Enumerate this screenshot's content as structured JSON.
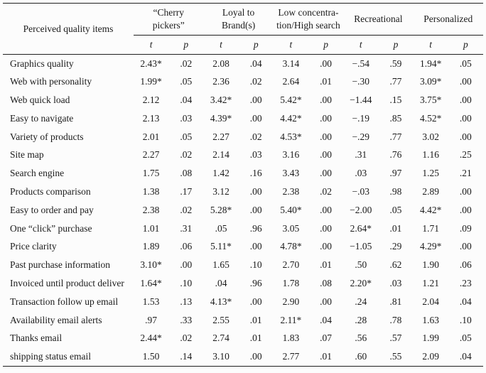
{
  "colors": {
    "ink": "#1b1b1b",
    "background": "#fcfcfc",
    "rule": "#1f1f1f"
  },
  "table": {
    "row_header": "Perceived quality items",
    "groups": [
      {
        "label": "“Cherry\npickers”"
      },
      {
        "label": "Loyal to\nBrand(s)"
      },
      {
        "label": "Low concentra-\ntion/High search"
      },
      {
        "label": "Recreational"
      },
      {
        "label": "Personalized"
      }
    ],
    "subheaders": [
      "t",
      "p"
    ],
    "rows": [
      {
        "item": "Graphics quality",
        "values": [
          "2.43*",
          ".02",
          "2.08",
          ".04",
          "3.14",
          ".00",
          "−.54",
          ".59",
          "1.94*",
          ".05"
        ]
      },
      {
        "item": "Web with personality",
        "values": [
          "1.99*",
          ".05",
          "2.36",
          ".02",
          "2.64",
          ".01",
          "−.30",
          ".77",
          "3.09*",
          ".00"
        ]
      },
      {
        "item": "Web quick load",
        "values": [
          "2.12",
          ".04",
          "3.42*",
          ".00",
          "5.42*",
          ".00",
          "−1.44",
          ".15",
          "3.75*",
          ".00"
        ]
      },
      {
        "item": "Easy to navigate",
        "values": [
          "2.13",
          ".03",
          "4.39*",
          ".00",
          "4.42*",
          ".00",
          "−.19",
          ".85",
          "4.52*",
          ".00"
        ]
      },
      {
        "item": "Variety of products",
        "values": [
          "2.01",
          ".05",
          "2.27",
          ".02",
          "4.53*",
          ".00",
          "−.29",
          ".77",
          "3.02",
          ".00"
        ]
      },
      {
        "item": "Site map",
        "values": [
          "2.27",
          ".02",
          "2.14",
          ".03",
          "3.16",
          ".00",
          ".31",
          ".76",
          "1.16",
          ".25"
        ]
      },
      {
        "item": "Search engine",
        "values": [
          "1.75",
          ".08",
          "1.42",
          ".16",
          "3.43",
          ".00",
          ".03",
          ".97",
          "1.25",
          ".21"
        ]
      },
      {
        "item": "Products comparison",
        "values": [
          "1.38",
          ".17",
          "3.12",
          ".00",
          "2.38",
          ".02",
          "−.03",
          ".98",
          "2.89",
          ".00"
        ]
      },
      {
        "item": "Easy to order and pay",
        "values": [
          "2.38",
          ".02",
          "5.28*",
          ".00",
          "5.40*",
          ".00",
          "−2.00",
          ".05",
          "4.42*",
          ".00"
        ]
      },
      {
        "item": "One “click” purchase",
        "values": [
          "1.01",
          ".31",
          ".05",
          ".96",
          "3.05",
          ".00",
          "2.64*",
          ".01",
          "1.71",
          ".09"
        ]
      },
      {
        "item": "Price clarity",
        "values": [
          "1.89",
          ".06",
          "5.11*",
          ".00",
          "4.78*",
          ".00",
          "−1.05",
          ".29",
          "4.29*",
          ".00"
        ]
      },
      {
        "item": "Past purchase information",
        "values": [
          "3.10*",
          ".00",
          "1.65",
          ".10",
          "2.70",
          ".01",
          ".50",
          ".62",
          "1.90",
          ".06"
        ]
      },
      {
        "item": "Invoiced until product deliver",
        "values": [
          "1.64*",
          ".10",
          ".04",
          ".96",
          "1.78",
          ".08",
          "2.20*",
          ".03",
          "1.21",
          ".23"
        ]
      },
      {
        "item": "Transaction follow up email",
        "values": [
          "1.53",
          ".13",
          "4.13*",
          ".00",
          "2.90",
          ".00",
          ".24",
          ".81",
          "2.04",
          ".04"
        ]
      },
      {
        "item": "Availability email alerts",
        "values": [
          ".97",
          ".33",
          "2.55",
          ".01",
          "2.11*",
          ".04",
          ".28",
          ".78",
          "1.63",
          ".10"
        ]
      },
      {
        "item": "Thanks email",
        "values": [
          "2.44*",
          ".02",
          "2.74",
          ".01",
          "1.83",
          ".07",
          ".56",
          ".57",
          "1.99",
          ".05"
        ]
      },
      {
        "item": "shipping status email",
        "values": [
          "1.50",
          ".14",
          "3.10",
          ".00",
          "2.77",
          ".01",
          ".60",
          ".55",
          "2.09",
          ".04"
        ]
      }
    ]
  }
}
